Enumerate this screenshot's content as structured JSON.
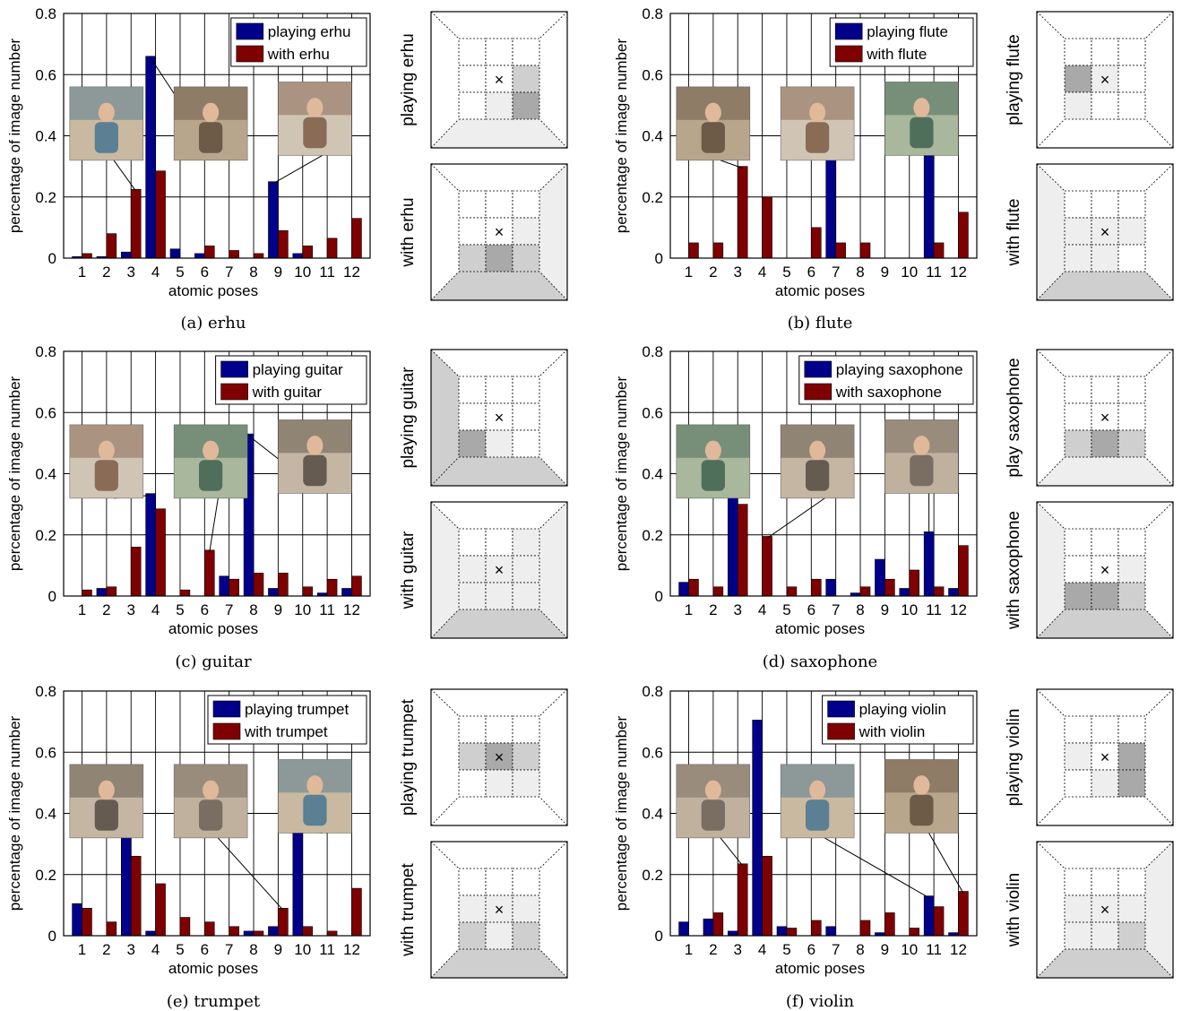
{
  "figure": {
    "y_axis_label": "percentage of image number",
    "x_axis_label": "atomic poses"
  },
  "chart_data": [
    {
      "type": "bar",
      "caption": "(a) erhu",
      "categories": [
        "1",
        "2",
        "3",
        "4",
        "5",
        "6",
        "7",
        "8",
        "9",
        "10",
        "11",
        "12"
      ],
      "ylim": [
        0,
        0.8
      ],
      "yticks": [
        "0",
        "0.2",
        "0.4",
        "0.6",
        "0.8"
      ],
      "xlabel": "atomic poses",
      "ylabel": "percentage of image number",
      "grid": true,
      "legend_position": "top-right",
      "series": [
        {
          "name": "playing erhu",
          "color": "#00008b",
          "values": [
            0.005,
            0.005,
            0.02,
            0.66,
            0.03,
            0.015,
            0,
            0,
            0.25,
            0.015,
            0,
            0
          ]
        },
        {
          "name": "with erhu",
          "color": "#7f0000",
          "values": [
            0.015,
            0.08,
            0.225,
            0.285,
            0,
            0.04,
            0.025,
            0.015,
            0.09,
            0.04,
            0.065,
            0.13
          ]
        }
      ],
      "grid_labels": [
        "playing erhu",
        "with erhu"
      ],
      "photo_targets": [
        3,
        4,
        9
      ]
    },
    {
      "type": "bar",
      "caption": "(b) flute",
      "categories": [
        "1",
        "2",
        "3",
        "4",
        "5",
        "6",
        "7",
        "8",
        "9",
        "10",
        "11",
        "12"
      ],
      "ylim": [
        0,
        0.8
      ],
      "yticks": [
        "0",
        "0.2",
        "0.4",
        "0.6",
        "0.8"
      ],
      "xlabel": "atomic poses",
      "ylabel": "percentage of image number",
      "grid": true,
      "legend_position": "top-right",
      "series": [
        {
          "name": "playing flute",
          "color": "#00008b",
          "values": [
            0,
            0,
            0,
            0,
            0,
            0,
            0.54,
            0,
            0,
            0,
            0.47,
            0
          ]
        },
        {
          "name": "with flute",
          "color": "#7f0000",
          "values": [
            0.05,
            0.05,
            0.3,
            0.2,
            0,
            0.1,
            0.05,
            0.05,
            0,
            0,
            0.05,
            0.15
          ]
        }
      ],
      "grid_labels": [
        "playing flute",
        "with flute"
      ],
      "photo_targets": [
        3,
        7,
        11
      ]
    },
    {
      "type": "bar",
      "caption": "(c) guitar",
      "categories": [
        "1",
        "2",
        "3",
        "4",
        "5",
        "6",
        "7",
        "8",
        "9",
        "10",
        "11",
        "12"
      ],
      "ylim": [
        0,
        0.8
      ],
      "yticks": [
        "0",
        "0.2",
        "0.4",
        "0.6",
        "0.8"
      ],
      "xlabel": "atomic poses",
      "ylabel": "percentage of image number",
      "grid": true,
      "legend_position": "top-right",
      "series": [
        {
          "name": "playing guitar",
          "color": "#00008b",
          "values": [
            0,
            0.025,
            0,
            0.335,
            0,
            0,
            0.065,
            0.53,
            0.025,
            0,
            0.01,
            0.025
          ]
        },
        {
          "name": "with guitar",
          "color": "#7f0000",
          "values": [
            0.02,
            0.03,
            0.16,
            0.285,
            0.02,
            0.15,
            0.055,
            0.075,
            0.075,
            0.03,
            0.055,
            0.065
          ]
        }
      ],
      "grid_labels": [
        "playing guitar",
        "with guitar"
      ],
      "photo_targets": [
        4,
        6,
        8
      ]
    },
    {
      "type": "bar",
      "caption": "(d) saxophone",
      "categories": [
        "1",
        "2",
        "3",
        "4",
        "5",
        "6",
        "7",
        "8",
        "9",
        "10",
        "11",
        "12"
      ],
      "ylim": [
        0,
        0.8
      ],
      "yticks": [
        "0",
        "0.2",
        "0.4",
        "0.6",
        "0.8"
      ],
      "xlabel": "atomic poses",
      "ylabel": "percentage of image number",
      "grid": true,
      "legend_position": "top-right",
      "series": [
        {
          "name": "playing saxophone",
          "color": "#00008b",
          "values": [
            0.045,
            0,
            0.535,
            0,
            0,
            0,
            0.055,
            0.01,
            0.12,
            0.025,
            0.21,
            0.025
          ]
        },
        {
          "name": "with saxophone",
          "color": "#7f0000",
          "values": [
            0.055,
            0.03,
            0.3,
            0.195,
            0.03,
            0.055,
            0,
            0.03,
            0.055,
            0.085,
            0.03,
            0.165
          ]
        }
      ],
      "grid_labels": [
        "play saxophone",
        "with saxophone"
      ],
      "photo_targets": [
        3,
        4,
        11
      ]
    },
    {
      "type": "bar",
      "caption": "(e) trumpet",
      "categories": [
        "1",
        "2",
        "3",
        "4",
        "5",
        "6",
        "7",
        "8",
        "9",
        "10",
        "11",
        "12"
      ],
      "ylim": [
        0,
        0.8
      ],
      "yticks": [
        "0",
        "0.2",
        "0.4",
        "0.6",
        "0.8"
      ],
      "xlabel": "atomic poses",
      "ylabel": "percentage of image number",
      "grid": true,
      "legend_position": "top-right",
      "series": [
        {
          "name": "playing trumpet",
          "color": "#00008b",
          "values": [
            0.105,
            0,
            0.485,
            0.015,
            0,
            0,
            0,
            0.015,
            0.03,
            0.35,
            0,
            0
          ]
        },
        {
          "name": "with trumpet",
          "color": "#7f0000",
          "values": [
            0.09,
            0.045,
            0.26,
            0.17,
            0.06,
            0.045,
            0.03,
            0.015,
            0.09,
            0.03,
            0.015,
            0.155
          ]
        }
      ],
      "grid_labels": [
        "playing trumpet",
        "with trumpet"
      ],
      "photo_targets": [
        3,
        9,
        10
      ]
    },
    {
      "type": "bar",
      "caption": "(f) violin",
      "categories": [
        "1",
        "2",
        "3",
        "4",
        "5",
        "6",
        "7",
        "8",
        "9",
        "10",
        "11",
        "12"
      ],
      "ylim": [
        0,
        0.8
      ],
      "yticks": [
        "0",
        "0.2",
        "0.4",
        "0.6",
        "0.8"
      ],
      "xlabel": "atomic poses",
      "ylabel": "percentage of image number",
      "grid": true,
      "legend_position": "top-right",
      "series": [
        {
          "name": "playing violin",
          "color": "#00008b",
          "values": [
            0.045,
            0.055,
            0.015,
            0.705,
            0.03,
            0,
            0.03,
            0,
            0.01,
            0,
            0.13,
            0.01
          ]
        },
        {
          "name": "with violin",
          "color": "#7f0000",
          "values": [
            0,
            0.075,
            0.235,
            0.26,
            0.025,
            0.05,
            0,
            0.05,
            0.075,
            0.025,
            0.095,
            0.145
          ]
        }
      ],
      "grid_labels": [
        "playing violin",
        "with violin"
      ],
      "photo_targets": [
        3,
        11,
        12
      ]
    }
  ],
  "pose_grids": {
    "marker": "×",
    "panels": [
      {
        "top": {
          "wall_left": 0,
          "wall_right": 0,
          "floor": 1,
          "cells": [
            0,
            0,
            0,
            0,
            0,
            2,
            0,
            1,
            3
          ]
        },
        "bottom": {
          "wall_left": 0,
          "wall_right": 1,
          "floor": 2,
          "cells": [
            0,
            0,
            0,
            0,
            0,
            1,
            2,
            3,
            2
          ]
        }
      },
      {
        "top": {
          "wall_left": 0,
          "wall_right": 0,
          "floor": 0,
          "cells": [
            0,
            0,
            0,
            3,
            1,
            0,
            1,
            0,
            0
          ]
        },
        "bottom": {
          "wall_left": 1,
          "wall_right": 0,
          "floor": 2,
          "cells": [
            0,
            0,
            0,
            1,
            1,
            1,
            1,
            1,
            0
          ]
        }
      },
      {
        "top": {
          "wall_left": 2,
          "wall_right": 0,
          "floor": 2,
          "cells": [
            0,
            0,
            0,
            0,
            0,
            0,
            3,
            1,
            0
          ]
        },
        "bottom": {
          "wall_left": 1,
          "wall_right": 1,
          "floor": 2,
          "cells": [
            0,
            0,
            1,
            1,
            1,
            1,
            1,
            1,
            1
          ]
        }
      },
      {
        "top": {
          "wall_left": 0,
          "wall_right": 0,
          "floor": 1,
          "cells": [
            0,
            0,
            0,
            0,
            0,
            0,
            2,
            3,
            2
          ]
        },
        "bottom": {
          "wall_left": 1,
          "wall_right": 0,
          "floor": 2,
          "cells": [
            0,
            0,
            0,
            0,
            0,
            1,
            3,
            3,
            2
          ]
        }
      },
      {
        "top": {
          "wall_left": 0,
          "wall_right": 0,
          "floor": 0,
          "cells": [
            0,
            0,
            0,
            2,
            3,
            2,
            0,
            1,
            1
          ]
        },
        "bottom": {
          "wall_left": 0,
          "wall_right": 0,
          "floor": 2,
          "cells": [
            0,
            0,
            0,
            1,
            1,
            1,
            2,
            1,
            2
          ]
        }
      },
      {
        "top": {
          "wall_left": 0,
          "wall_right": 0,
          "floor": 0,
          "cells": [
            0,
            0,
            0,
            1,
            0,
            3,
            0,
            1,
            3
          ]
        },
        "bottom": {
          "wall_left": 0,
          "wall_right": 1,
          "floor": 2,
          "cells": [
            0,
            0,
            0,
            1,
            1,
            1,
            1,
            1,
            2
          ]
        }
      }
    ]
  }
}
